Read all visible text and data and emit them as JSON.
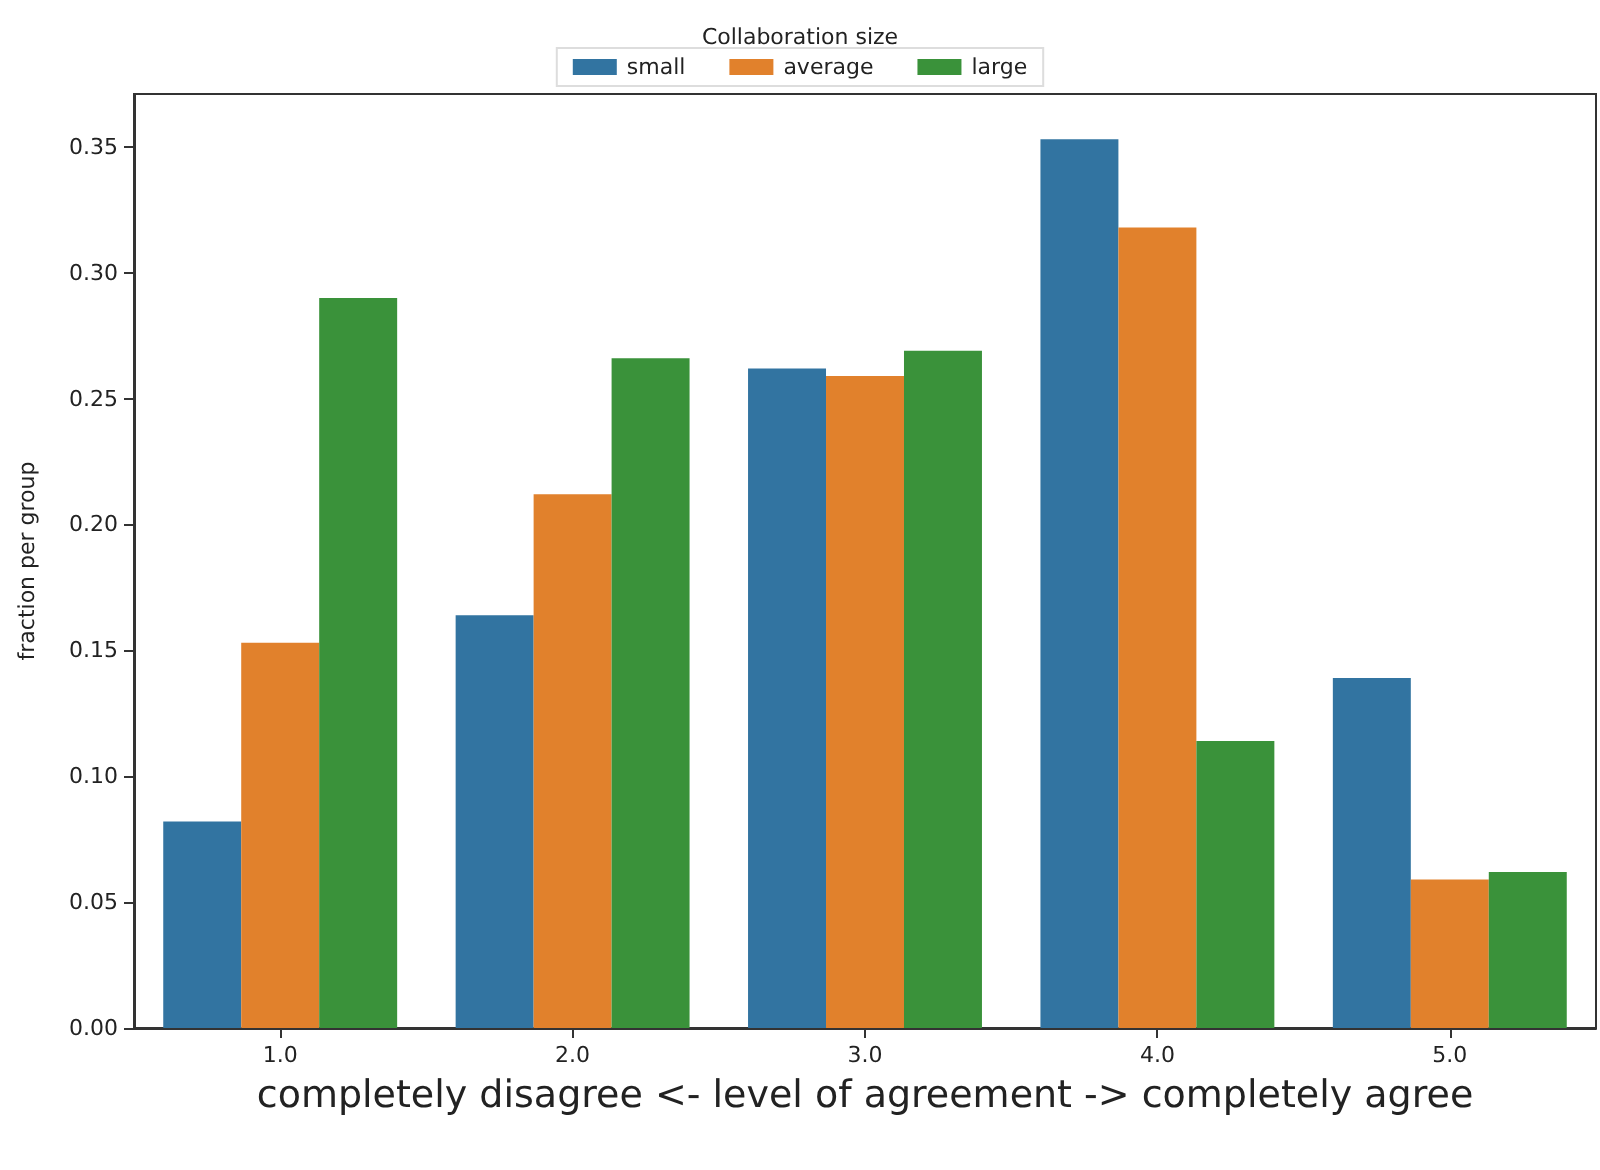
{
  "chart_data": {
    "type": "bar",
    "xlabel": "completely disagree <- level of agreement -> completely agree",
    "ylabel": "fraction per group",
    "legend_title": "Collaboration size",
    "categories": [
      "1.0",
      "2.0",
      "3.0",
      "4.0",
      "5.0"
    ],
    "series": [
      {
        "name": "small",
        "color": "#3274a1",
        "values": [
          0.082,
          0.164,
          0.262,
          0.353,
          0.139
        ]
      },
      {
        "name": "average",
        "color": "#e1812c",
        "values": [
          0.153,
          0.212,
          0.259,
          0.318,
          0.059
        ]
      },
      {
        "name": "large",
        "color": "#3a923a",
        "values": [
          0.29,
          0.266,
          0.269,
          0.114,
          0.062
        ]
      }
    ],
    "ylim": [
      0,
      0.371
    ],
    "yticks": [
      {
        "value": 0,
        "label": "0.00"
      },
      {
        "value": 0.05,
        "label": "0.05"
      },
      {
        "value": 0.1,
        "label": "0.10"
      },
      {
        "value": 0.15,
        "label": "0.15"
      },
      {
        "value": 0.2,
        "label": "0.20"
      },
      {
        "value": 0.25,
        "label": "0.25"
      },
      {
        "value": 0.3,
        "label": "0.30"
      },
      {
        "value": 0.35,
        "label": "0.35"
      }
    ],
    "grid": false,
    "legend": "top"
  }
}
